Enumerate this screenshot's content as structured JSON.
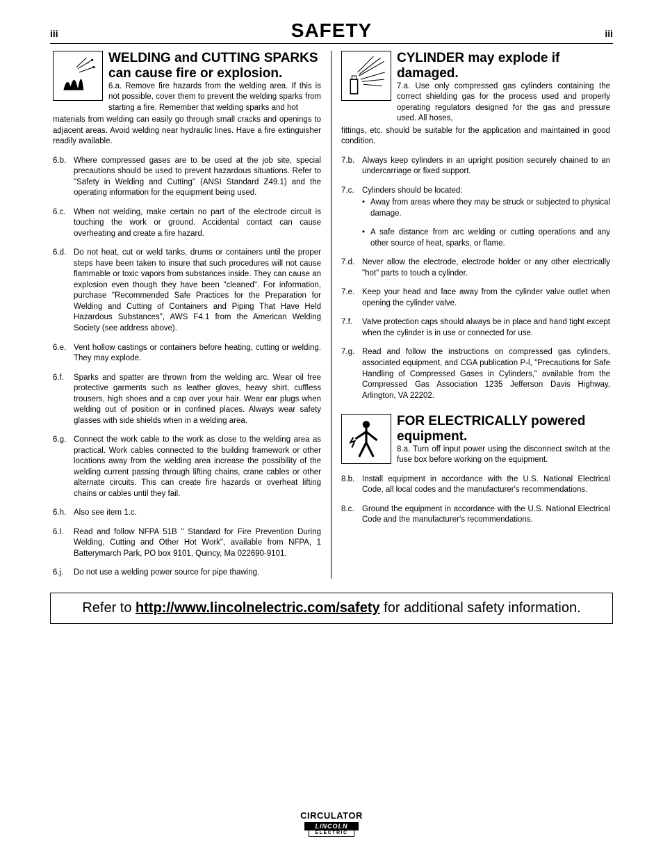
{
  "page": {
    "left_num": "iii",
    "title": "SAFETY",
    "right_num": "iii"
  },
  "section6": {
    "title": "WELDING and CUTTING SPARKS can cause fire or explosion.",
    "lead_label": "6.a.",
    "lead": "Remove fire hazards from the welding area. If this is not possible, cover them to prevent the welding sparks from starting a fire. Remember that welding sparks and hot materials from welding can easily go through small cracks and openings to adjacent areas. Avoid welding near hydraulic lines. Have a fire extinguisher readily available.",
    "items": [
      {
        "label": "6.b.",
        "text": "Where compressed gases are to be used at the job site, special precautions should be used to prevent hazardous situations. Refer to \"Safety in Welding and Cutting\" (ANSI Standard Z49.1) and the operating information for the equipment being used."
      },
      {
        "label": "6.c.",
        "text": "When not welding, make certain no part of the electrode circuit is touching the work or ground. Accidental contact can cause overheating and create a fire hazard."
      },
      {
        "label": "6.d.",
        "text": "Do not heat, cut or weld tanks, drums or containers until the proper steps have been taken to insure that such procedures will not cause flammable or toxic vapors from substances inside. They can cause an explosion even though they have been \"cleaned\". For information, purchase \"Recommended Safe Practices for the Preparation for Welding and Cutting of Containers and Piping That Have Held Hazardous Substances\", AWS F4.1 from the American Welding Society (see address above)."
      },
      {
        "label": "6.e.",
        "text": "Vent hollow castings or containers before heating, cutting or welding. They may explode."
      },
      {
        "label": "6.f.",
        "text": "Sparks and spatter are thrown from the welding arc. Wear oil free protective garments such as leather gloves, heavy shirt, cuffless trousers, high shoes and a cap over your hair. Wear ear plugs when welding out of position or in confined places. Always wear safety glasses with side shields when in a welding area."
      },
      {
        "label": "6.g.",
        "text": "Connect the work cable to the work as close to the welding area as practical. Work cables connected to the building framework or other locations away from the welding area increase the possibility of the welding current passing through lifting chains, crane cables or other alternate circuits. This can create fire hazards or overheat lifting chains or cables until they fail."
      },
      {
        "label": "6.h.",
        "text": "Also see item 1.c."
      },
      {
        "label": "6.I.",
        "text": "Read and follow NFPA 51B \" Standard for Fire Prevention During Welding, Cutting and Other Hot Work\", available from NFPA, 1 Batterymarch Park, PO box 9101, Quincy, Ma 022690-9101."
      },
      {
        "label": "6.j.",
        "text": "Do not use a welding power source for pipe thawing."
      }
    ]
  },
  "section7": {
    "title": "CYLINDER may explode if damaged.",
    "lead_label": "7.a.",
    "lead": "Use only compressed gas cylinders containing the correct shielding gas for the process used and properly operating regulators designed for the gas and pressure used. All hoses, fittings, etc. should be suitable for the application and maintained in good condition.",
    "items": [
      {
        "label": "7.b.",
        "text": "Always keep cylinders in an upright position securely chained to an undercarriage or fixed support."
      },
      {
        "label": "7.c.",
        "text": "Cylinders should be located:",
        "sub": [
          "Away from areas where they may be struck or subjected to physical damage.",
          "A safe distance from arc welding or cutting operations and any other source of heat, sparks, or flame."
        ]
      },
      {
        "label": "7.d.",
        "text": "Never allow the electrode, electrode holder or any other electrically \"hot\" parts to touch a cylinder."
      },
      {
        "label": "7.e.",
        "text": "Keep your head and face away from the cylinder valve outlet when opening the cylinder valve."
      },
      {
        "label": "7.f.",
        "text": "Valve protection caps should always be in place and hand tight except when the cylinder is in use or connected for use."
      },
      {
        "label": "7.g.",
        "text": "Read and follow the instructions on compressed gas cylinders, associated equipment, and CGA publication P-l, \"Precautions for Safe Handling of Compressed Gases in Cylinders,\" available from the Compressed Gas Association 1235 Jefferson Davis Highway, Arlington, VA 22202."
      }
    ]
  },
  "section8": {
    "title": "FOR ELECTRICALLY powered equipment.",
    "lead_label": "8.a.",
    "lead": "Turn off input power using the disconnect switch at the fuse box before working on the equipment.",
    "items": [
      {
        "label": "8.b.",
        "text": "Install equipment in accordance with the U.S. National Electrical Code, all local codes and the manufacturer's recommendations."
      },
      {
        "label": "8.c.",
        "text": "Ground the equipment in accordance with the U.S. National Electrical Code and the manufacturer's recommendations."
      }
    ]
  },
  "footer": {
    "prefix": "Refer to ",
    "url": "http://www.lincolnelectric.com/safety",
    "suffix": " for additional safety information."
  },
  "product": {
    "name": "CIRCULATOR",
    "brand_top": "LINCOLN",
    "brand_bot": "ELECTRIC"
  }
}
